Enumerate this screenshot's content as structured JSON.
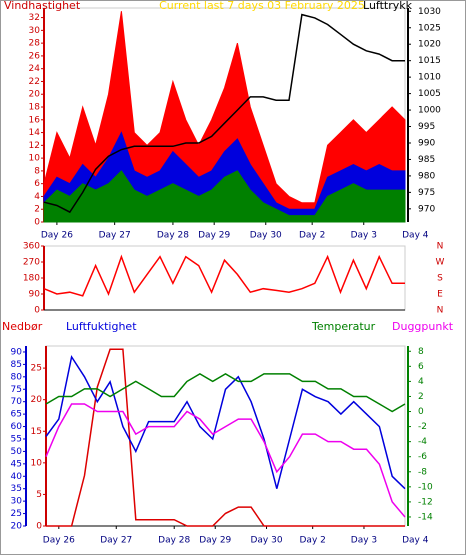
{
  "chart_data": [
    {
      "type": "line",
      "title": "Current last 7 days 03 February 2025",
      "title_color": "#ffd800",
      "ylabel": "Vindhastighet",
      "ylabel_color": "#cc0000",
      "x": [
        0,
        0.25,
        0.5,
        0.75,
        1,
        1.25,
        1.5,
        1.75,
        2,
        2.25,
        2.5,
        2.75,
        3,
        3.25,
        3.5,
        3.75,
        4,
        4.25,
        4.5,
        4.75,
        5,
        5.25,
        5.5,
        5.75,
        6,
        6.25,
        6.5,
        6.75,
        7
      ],
      "xlim": [
        0,
        7
      ],
      "xticks": [
        {
          "value": 0.25,
          "label": "Day 26"
        },
        {
          "value": 1.37,
          "label": "Day 27"
        },
        {
          "value": 2.5,
          "label": "Day 28"
        },
        {
          "value": 3.3,
          "label": "Day 29"
        },
        {
          "value": 4.3,
          "label": "Day 30"
        },
        {
          "value": 5.2,
          "label": "Day 2"
        },
        {
          "value": 6.2,
          "label": "Day 3"
        },
        {
          "value": 7.2,
          "label": "Day 4"
        }
      ],
      "ylim": [
        0,
        33.5
      ],
      "yticks": [
        0,
        2,
        4,
        6,
        8,
        10,
        12,
        14,
        16,
        18,
        20,
        22,
        24,
        26,
        28,
        30,
        32
      ],
      "y2lim": [
        966,
        1031
      ],
      "y2ticks": [
        970,
        975,
        980,
        985,
        990,
        995,
        1000,
        1005,
        1010,
        1015,
        1020,
        1025,
        1030
      ],
      "series": [
        {
          "color": "#ff0000",
          "style": "area",
          "axis": "y",
          "values": [
            6,
            14,
            10,
            18,
            12,
            20,
            33,
            14,
            12,
            14,
            22,
            16,
            12,
            16,
            21,
            28,
            18,
            12,
            6,
            4,
            3,
            3,
            12,
            14,
            16,
            14,
            16,
            18,
            16
          ]
        },
        {
          "color": "#0000dd",
          "style": "area",
          "axis": "y",
          "values": [
            4,
            7,
            6,
            9,
            7,
            10,
            14,
            8,
            7,
            8,
            11,
            9,
            7,
            8,
            11,
            13,
            9,
            6,
            3,
            2,
            2,
            2,
            7,
            8,
            9,
            8,
            9,
            8,
            8
          ]
        },
        {
          "color": "#008000",
          "style": "area",
          "axis": "y",
          "values": [
            3,
            5,
            4,
            6,
            5,
            6,
            8,
            5,
            4,
            5,
            6,
            5,
            4,
            5,
            7,
            8,
            5,
            3,
            2,
            1,
            1,
            1,
            4,
            5,
            6,
            5,
            5,
            5,
            5
          ]
        },
        {
          "name": "Lufttrykk",
          "color": "#000000",
          "style": "line",
          "axis": "y2",
          "values": [
            972,
            971,
            969,
            975,
            982,
            986,
            988,
            989,
            989,
            989,
            989,
            990,
            990,
            992,
            996,
            1000,
            1004,
            1004,
            1003,
            1003,
            1029,
            1028,
            1026,
            1023,
            1020,
            1018,
            1017,
            1015,
            1015
          ]
        }
      ]
    },
    {
      "type": "line",
      "x": [
        0,
        0.25,
        0.5,
        0.75,
        1,
        1.25,
        1.5,
        1.75,
        2,
        2.25,
        2.5,
        2.75,
        3,
        3.25,
        3.5,
        3.75,
        4,
        4.25,
        4.5,
        4.75,
        5,
        5.25,
        5.5,
        5.75,
        6,
        6.25,
        6.5,
        6.75,
        7
      ],
      "xlim": [
        0,
        7
      ],
      "ylim": [
        0,
        360
      ],
      "yticks": [
        0,
        90,
        180,
        270,
        360
      ],
      "y2lim": [
        0,
        360
      ],
      "y2ticks": [
        {
          "value": 0,
          "label": "N"
        },
        {
          "value": 90,
          "label": "E"
        },
        {
          "value": 180,
          "label": "S"
        },
        {
          "value": 270,
          "label": "W"
        },
        {
          "value": 360,
          "label": "N"
        }
      ],
      "series": [
        {
          "color": "#ff0000",
          "style": "line",
          "axis": "y",
          "values": [
            120,
            90,
            100,
            80,
            250,
            90,
            300,
            100,
            200,
            300,
            150,
            300,
            250,
            100,
            280,
            200,
            100,
            120,
            110,
            100,
            120,
            150,
            300,
            100,
            280,
            120,
            300,
            150,
            150
          ]
        }
      ]
    },
    {
      "type": "line",
      "x": [
        0,
        0.25,
        0.5,
        0.75,
        1,
        1.25,
        1.5,
        1.75,
        2,
        2.25,
        2.5,
        2.75,
        3,
        3.25,
        3.5,
        3.75,
        4,
        4.25,
        4.5,
        4.75,
        5,
        5.25,
        5.5,
        5.75,
        6,
        6.25,
        6.5,
        6.75,
        7
      ],
      "xlim": [
        0,
        7
      ],
      "xticks": [
        {
          "value": 0.25,
          "label": "Day 26"
        },
        {
          "value": 1.37,
          "label": "Day 27"
        },
        {
          "value": 2.5,
          "label": "Day 28"
        },
        {
          "value": 3.3,
          "label": "Day 29"
        },
        {
          "value": 4.3,
          "label": "Day 30"
        },
        {
          "value": 5.2,
          "label": "Day 2"
        },
        {
          "value": 6.2,
          "label": "Day 3"
        },
        {
          "value": 7.2,
          "label": "Day 4"
        }
      ],
      "ylim": [
        20,
        92.4
      ],
      "yticks": [
        20,
        25,
        30,
        35,
        40,
        45,
        50,
        55,
        60,
        65,
        70,
        75,
        80,
        85,
        90
      ],
      "y3lim": [
        0,
        28.5
      ],
      "y3ticks": [
        0,
        5,
        10,
        15,
        20,
        25
      ],
      "y2lim": [
        -15.2,
        8.7
      ],
      "y2ticks": [
        -14,
        -12,
        -10,
        -8,
        -6,
        -4,
        -2,
        0,
        2,
        4,
        6,
        8
      ],
      "series": [
        {
          "name": "Nedbør",
          "color": "#dd0000",
          "style": "line",
          "axis": "y3",
          "values": [
            0,
            0,
            0,
            8,
            22,
            28,
            28,
            1,
            1,
            1,
            1,
            0,
            0,
            0,
            2,
            3,
            3,
            0,
            0,
            0,
            0,
            0,
            0,
            0,
            0,
            0,
            0,
            0,
            0
          ]
        },
        {
          "name": "Luftfuktighet",
          "color": "#0000dd",
          "style": "line",
          "axis": "y",
          "values": [
            56,
            63,
            88,
            80,
            70,
            78,
            60,
            50,
            62,
            62,
            62,
            70,
            60,
            55,
            75,
            80,
            70,
            55,
            35,
            55,
            75,
            72,
            70,
            65,
            70,
            65,
            60,
            40,
            35
          ]
        },
        {
          "name": "Temperatur",
          "color": "#008000",
          "style": "line",
          "axis": "y2",
          "values": [
            1,
            2,
            2,
            3,
            3,
            2,
            3,
            4,
            3,
            2,
            2,
            4,
            5,
            4,
            5,
            4,
            4,
            5,
            5,
            5,
            4,
            4,
            3,
            3,
            2,
            2,
            1,
            0,
            1
          ]
        },
        {
          "name": "Duggpunkt",
          "color": "#ee00ee",
          "style": "line",
          "axis": "y2",
          "values": [
            -6,
            -2,
            1,
            1,
            0,
            0,
            0,
            -3,
            -2,
            -2,
            -2,
            0,
            -1,
            -3,
            -2,
            -1,
            -1,
            -4,
            -8,
            -6,
            -3,
            -3,
            -4,
            -4,
            -5,
            -5,
            -7,
            -12,
            -14
          ]
        }
      ]
    }
  ]
}
